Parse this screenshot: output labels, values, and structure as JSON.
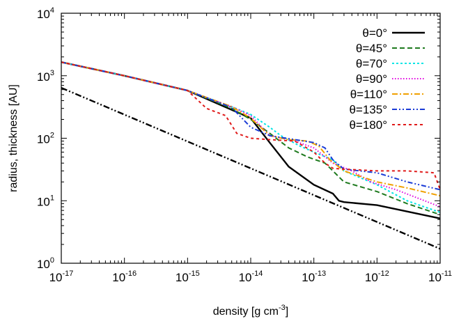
{
  "chart_data": {
    "type": "line",
    "title": "",
    "xlabel": "density [g cm",
    "xlabel_sup": "-3",
    "xlabel_suffix": "]",
    "ylabel": "radius, thickness [AU]",
    "x_scale": "log",
    "y_scale": "log",
    "xlim": [
      1e-17,
      1e-11
    ],
    "ylim": [
      1,
      10000
    ],
    "grid": false,
    "legend_position": "top-right",
    "x_ticks": [
      {
        "value": 1e-17,
        "base": "10",
        "exp": "-17"
      },
      {
        "value": 1e-16,
        "base": "10",
        "exp": "-16"
      },
      {
        "value": 1e-15,
        "base": "10",
        "exp": "-15"
      },
      {
        "value": 1e-14,
        "base": "10",
        "exp": "-14"
      },
      {
        "value": 1e-13,
        "base": "10",
        "exp": "-13"
      },
      {
        "value": 1e-12,
        "base": "10",
        "exp": "-12"
      },
      {
        "value": 1e-11,
        "base": "10",
        "exp": "-11"
      }
    ],
    "y_ticks": [
      {
        "value": 1,
        "base": "10",
        "exp": "0"
      },
      {
        "value": 10,
        "base": "10",
        "exp": "1"
      },
      {
        "value": 100,
        "base": "10",
        "exp": "2"
      },
      {
        "value": 1000,
        "base": "10",
        "exp": "3"
      },
      {
        "value": 10000,
        "base": "10",
        "exp": "4"
      }
    ],
    "series": [
      {
        "name": "θ=0°",
        "color": "#000000",
        "dash": "solid",
        "x": [
          1e-17,
          1e-16,
          1e-15,
          1e-14,
          2e-14,
          4e-14,
          1e-13,
          2e-13,
          2.5e-13,
          3e-13,
          1e-12,
          1e-11
        ],
        "y": [
          1650,
          1000,
          580,
          210,
          85,
          35,
          18,
          13,
          10,
          9.5,
          8.5,
          5.2
        ]
      },
      {
        "name": "θ=45°",
        "color": "#1e7a1e",
        "dash": "dash",
        "x": [
          1e-17,
          1e-16,
          1e-15,
          5e-15,
          1e-14,
          2e-14,
          4e-14,
          8e-14,
          1.5e-13,
          2e-13,
          3e-13,
          1e-12,
          3e-12,
          1e-11
        ],
        "y": [
          1650,
          1000,
          580,
          300,
          200,
          120,
          70,
          50,
          40,
          30,
          20,
          14,
          9,
          6
        ]
      },
      {
        "name": "θ=70°",
        "color": "#00e5e5",
        "dash": "dot",
        "x": [
          1e-17,
          1e-16,
          1e-15,
          5e-15,
          1e-14,
          2e-14,
          3e-14,
          6e-14,
          1e-13,
          2e-13,
          3e-13,
          1e-12,
          3e-12,
          1e-11
        ],
        "y": [
          1650,
          1000,
          580,
          320,
          240,
          150,
          110,
          75,
          60,
          45,
          30,
          18,
          10,
          6.5
        ]
      },
      {
        "name": "θ=90°",
        "color": "#e000e0",
        "dash": "finedot",
        "x": [
          1e-17,
          1e-16,
          1e-15,
          5e-15,
          1e-14,
          1.5e-14,
          2e-14,
          5e-14,
          1e-13,
          2e-13,
          4e-13,
          8e-13,
          2e-12,
          1e-11
        ],
        "y": [
          1650,
          1000,
          580,
          320,
          230,
          150,
          110,
          90,
          70,
          40,
          30,
          20,
          15,
          8
        ]
      },
      {
        "name": "θ=110°",
        "color": "#f0a000",
        "dash": "dashdot",
        "x": [
          1e-17,
          1e-16,
          1e-15,
          5e-15,
          1e-14,
          2e-14,
          4e-14,
          8e-14,
          1.2e-13,
          1.8e-13,
          3e-13,
          1e-12,
          3e-12,
          1e-11
        ],
        "y": [
          1650,
          1000,
          580,
          320,
          210,
          110,
          95,
          90,
          75,
          45,
          30,
          20,
          16,
          12
        ]
      },
      {
        "name": "θ=135°",
        "color": "#1a3bd6",
        "dash": "dashdotdot",
        "x": [
          1e-17,
          1e-16,
          1e-15,
          5e-15,
          1e-14,
          2e-14,
          5e-14,
          1e-13,
          1.5e-13,
          2e-13,
          3e-13,
          1e-12,
          3e-12,
          1e-11
        ],
        "y": [
          1650,
          1000,
          580,
          310,
          150,
          110,
          95,
          85,
          70,
          45,
          32,
          28,
          20,
          15
        ]
      },
      {
        "name": "θ=180°",
        "color": "#e01a1a",
        "dash": "shortdash",
        "x": [
          1e-17,
          1e-16,
          1e-15,
          2e-15,
          4e-15,
          6e-15,
          1e-14,
          2e-14,
          5e-14,
          1e-13,
          1.5e-13,
          2e-13,
          3e-13,
          1e-12,
          3e-12,
          8e-12,
          1e-11
        ],
        "y": [
          1650,
          1000,
          580,
          300,
          230,
          120,
          100,
          95,
          90,
          60,
          40,
          33,
          32,
          30,
          30,
          28,
          15
        ]
      },
      {
        "name": "",
        "color": "#000000",
        "dash": "dashdotdot-black",
        "in_legend": false,
        "x": [
          1e-17,
          1e-11
        ],
        "y": [
          640,
          1.7
        ]
      }
    ]
  }
}
